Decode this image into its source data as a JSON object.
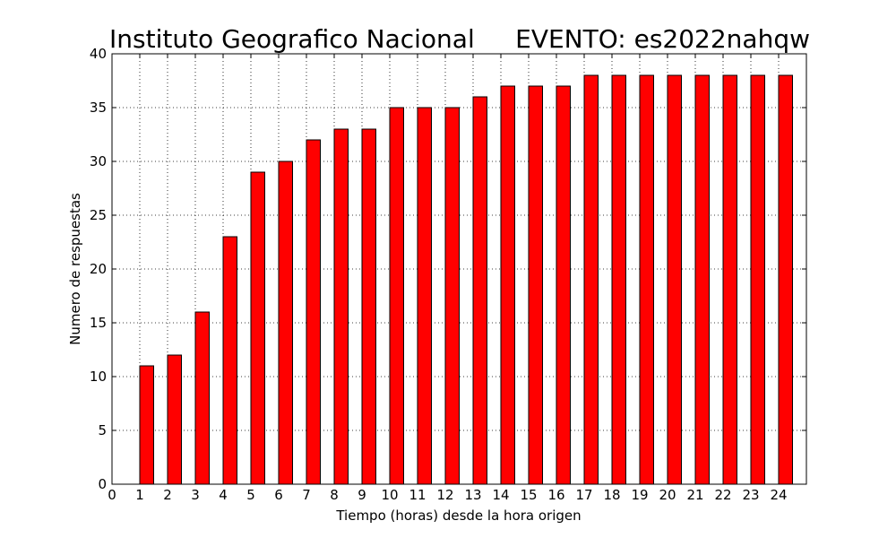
{
  "chart_data": {
    "type": "bar",
    "title_left": "Instituto Geografico Nacional",
    "title_right": "EVENTO: es2022nahqw",
    "xlabel": "Tiempo (horas) desde la hora origen",
    "ylabel": "Numero de respuestas",
    "x": [
      1,
      2,
      3,
      4,
      5,
      6,
      7,
      8,
      9,
      10,
      11,
      12,
      13,
      14,
      15,
      16,
      17,
      18,
      19,
      20,
      21,
      22,
      23,
      24
    ],
    "values": [
      11,
      12,
      16,
      23,
      29,
      30,
      32,
      33,
      33,
      35,
      35,
      35,
      36,
      37,
      37,
      37,
      38,
      38,
      38,
      38,
      38,
      38,
      38,
      38
    ],
    "xlim": [
      0,
      25
    ],
    "ylim": [
      0,
      40
    ],
    "x_ticks": [
      "0",
      "1",
      "2",
      "3",
      "4",
      "5",
      "6",
      "7",
      "8",
      "9",
      "10",
      "11",
      "12",
      "13",
      "14",
      "15",
      "16",
      "17",
      "18",
      "19",
      "20",
      "21",
      "22",
      "23",
      "24"
    ],
    "y_ticks": [
      "0",
      "5",
      "10",
      "15",
      "20",
      "25",
      "30",
      "35",
      "40"
    ],
    "grid": true,
    "bar_color": "#ff0000",
    "edge_color": "#000000"
  }
}
